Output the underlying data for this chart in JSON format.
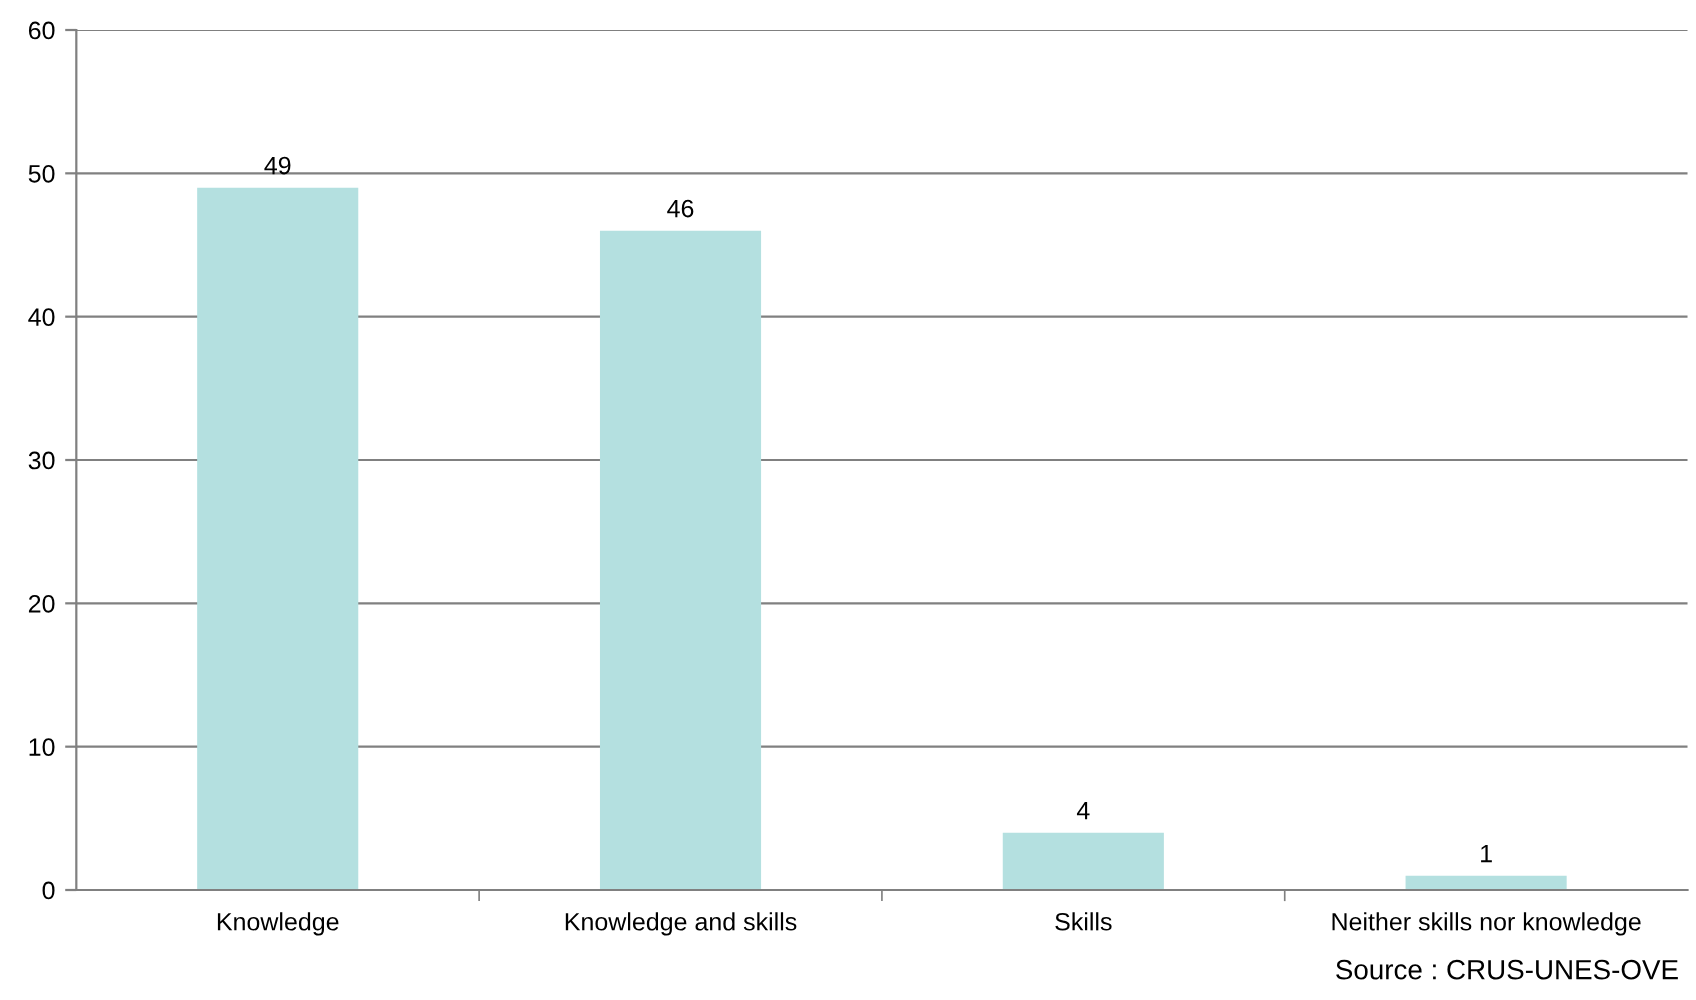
{
  "chart_data": {
    "type": "bar",
    "categories": [
      "Knowledge",
      "Knowledge and skills",
      "Skills",
      "Neither skills nor knowledge"
    ],
    "values": [
      49,
      46,
      4,
      1
    ],
    "color": "#b4e0e0",
    "ylim": [
      0,
      60
    ],
    "yticks": [
      0,
      10,
      20,
      30,
      40,
      50,
      60
    ],
    "grid": "y",
    "data_labels": true,
    "legend": false,
    "annotations": [
      "Source : CRUS-UNES-OVE"
    ]
  }
}
